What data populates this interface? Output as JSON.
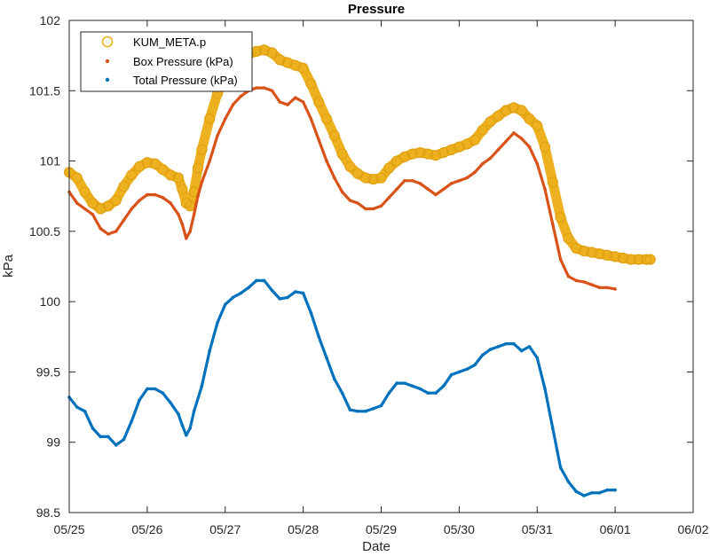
{
  "chart_data": {
    "type": "scatter",
    "title": "Pressure",
    "xlabel": "Date",
    "ylabel": "kPa",
    "x_ticks": [
      "05/25",
      "05/26",
      "05/27",
      "05/28",
      "05/29",
      "05/30",
      "05/31",
      "06/01",
      "06/02"
    ],
    "xlim_days": [
      0,
      8
    ],
    "ylim": [
      98.5,
      102
    ],
    "y_ticks": [
      "98.5",
      "99",
      "99.5",
      "100",
      "100.5",
      "101",
      "101.5",
      "102"
    ],
    "grid": false,
    "legend_position": "top-left",
    "series": [
      {
        "name": "KUM_META.p",
        "color": "#EDB120",
        "marker": "circle",
        "points": [
          [
            0.0,
            100.92
          ],
          [
            0.1,
            100.88
          ],
          [
            0.2,
            100.78
          ],
          [
            0.3,
            100.7
          ],
          [
            0.4,
            100.66
          ],
          [
            0.5,
            100.68
          ],
          [
            0.6,
            100.72
          ],
          [
            0.7,
            100.82
          ],
          [
            0.8,
            100.9
          ],
          [
            0.9,
            100.96
          ],
          [
            1.0,
            100.99
          ],
          [
            1.1,
            100.98
          ],
          [
            1.2,
            100.94
          ],
          [
            1.3,
            100.9
          ],
          [
            1.4,
            100.88
          ],
          [
            1.45,
            100.8
          ],
          [
            1.5,
            100.7
          ],
          [
            1.55,
            100.68
          ],
          [
            1.6,
            100.78
          ],
          [
            1.65,
            100.95
          ],
          [
            1.7,
            101.08
          ],
          [
            1.8,
            101.3
          ],
          [
            1.9,
            101.48
          ],
          [
            2.0,
            101.6
          ],
          [
            2.1,
            101.68
          ],
          [
            2.2,
            101.72
          ],
          [
            2.3,
            101.76
          ],
          [
            2.4,
            101.78
          ],
          [
            2.5,
            101.79
          ],
          [
            2.6,
            101.77
          ],
          [
            2.7,
            101.72
          ],
          [
            2.8,
            101.7
          ],
          [
            2.9,
            101.68
          ],
          [
            3.0,
            101.66
          ],
          [
            3.1,
            101.55
          ],
          [
            3.2,
            101.42
          ],
          [
            3.3,
            101.3
          ],
          [
            3.4,
            101.18
          ],
          [
            3.5,
            101.05
          ],
          [
            3.6,
            100.96
          ],
          [
            3.7,
            100.91
          ],
          [
            3.8,
            100.88
          ],
          [
            3.9,
            100.87
          ],
          [
            4.0,
            100.88
          ],
          [
            4.1,
            100.95
          ],
          [
            4.2,
            101.0
          ],
          [
            4.3,
            101.03
          ],
          [
            4.4,
            101.05
          ],
          [
            4.5,
            101.06
          ],
          [
            4.6,
            101.05
          ],
          [
            4.7,
            101.04
          ],
          [
            4.8,
            101.06
          ],
          [
            4.9,
            101.08
          ],
          [
            5.0,
            101.1
          ],
          [
            5.1,
            101.12
          ],
          [
            5.2,
            101.15
          ],
          [
            5.3,
            101.22
          ],
          [
            5.4,
            101.28
          ],
          [
            5.5,
            101.32
          ],
          [
            5.6,
            101.36
          ],
          [
            5.7,
            101.38
          ],
          [
            5.8,
            101.36
          ],
          [
            5.9,
            101.3
          ],
          [
            6.0,
            101.25
          ],
          [
            6.1,
            101.1
          ],
          [
            6.2,
            100.85
          ],
          [
            6.3,
            100.6
          ],
          [
            6.4,
            100.45
          ],
          [
            6.5,
            100.38
          ],
          [
            6.6,
            100.36
          ],
          [
            6.7,
            100.35
          ],
          [
            6.8,
            100.34
          ],
          [
            6.9,
            100.33
          ],
          [
            7.0,
            100.32
          ],
          [
            7.1,
            100.31
          ],
          [
            7.2,
            100.3
          ],
          [
            7.3,
            100.3
          ],
          [
            7.4,
            100.3
          ],
          [
            7.45,
            100.3
          ]
        ]
      },
      {
        "name": "Box Pressure (kPa)",
        "color": "#D95319",
        "marker": "dot",
        "points": [
          [
            0.0,
            100.78
          ],
          [
            0.1,
            100.7
          ],
          [
            0.2,
            100.66
          ],
          [
            0.3,
            100.62
          ],
          [
            0.4,
            100.52
          ],
          [
            0.5,
            100.48
          ],
          [
            0.6,
            100.5
          ],
          [
            0.7,
            100.58
          ],
          [
            0.8,
            100.66
          ],
          [
            0.9,
            100.72
          ],
          [
            1.0,
            100.76
          ],
          [
            1.1,
            100.76
          ],
          [
            1.2,
            100.74
          ],
          [
            1.3,
            100.7
          ],
          [
            1.4,
            100.62
          ],
          [
            1.45,
            100.55
          ],
          [
            1.5,
            100.45
          ],
          [
            1.55,
            100.5
          ],
          [
            1.6,
            100.62
          ],
          [
            1.65,
            100.75
          ],
          [
            1.7,
            100.85
          ],
          [
            1.8,
            101.0
          ],
          [
            1.9,
            101.18
          ],
          [
            2.0,
            101.3
          ],
          [
            2.1,
            101.4
          ],
          [
            2.2,
            101.46
          ],
          [
            2.3,
            101.5
          ],
          [
            2.4,
            101.52
          ],
          [
            2.5,
            101.52
          ],
          [
            2.6,
            101.5
          ],
          [
            2.7,
            101.42
          ],
          [
            2.8,
            101.4
          ],
          [
            2.9,
            101.45
          ],
          [
            3.0,
            101.42
          ],
          [
            3.1,
            101.3
          ],
          [
            3.2,
            101.15
          ],
          [
            3.3,
            101.0
          ],
          [
            3.4,
            100.88
          ],
          [
            3.5,
            100.78
          ],
          [
            3.6,
            100.72
          ],
          [
            3.7,
            100.7
          ],
          [
            3.8,
            100.66
          ],
          [
            3.9,
            100.66
          ],
          [
            4.0,
            100.68
          ],
          [
            4.1,
            100.74
          ],
          [
            4.2,
            100.8
          ],
          [
            4.3,
            100.86
          ],
          [
            4.4,
            100.86
          ],
          [
            4.5,
            100.84
          ],
          [
            4.6,
            100.8
          ],
          [
            4.7,
            100.76
          ],
          [
            4.8,
            100.8
          ],
          [
            4.9,
            100.84
          ],
          [
            5.0,
            100.86
          ],
          [
            5.1,
            100.88
          ],
          [
            5.2,
            100.92
          ],
          [
            5.3,
            100.98
          ],
          [
            5.4,
            101.02
          ],
          [
            5.5,
            101.08
          ],
          [
            5.6,
            101.14
          ],
          [
            5.7,
            101.2
          ],
          [
            5.8,
            101.16
          ],
          [
            5.9,
            101.1
          ],
          [
            6.0,
            100.98
          ],
          [
            6.1,
            100.8
          ],
          [
            6.2,
            100.55
          ],
          [
            6.3,
            100.3
          ],
          [
            6.4,
            100.18
          ],
          [
            6.5,
            100.15
          ],
          [
            6.6,
            100.14
          ],
          [
            6.7,
            100.12
          ],
          [
            6.8,
            100.1
          ],
          [
            6.9,
            100.1
          ],
          [
            7.0,
            100.09
          ]
        ]
      },
      {
        "name": "Total Pressure (kPa)",
        "color": "#0072BD",
        "marker": "dot",
        "points": [
          [
            0.0,
            99.32
          ],
          [
            0.1,
            99.25
          ],
          [
            0.2,
            99.22
          ],
          [
            0.3,
            99.1
          ],
          [
            0.4,
            99.04
          ],
          [
            0.5,
            99.04
          ],
          [
            0.6,
            98.98
          ],
          [
            0.7,
            99.02
          ],
          [
            0.8,
            99.15
          ],
          [
            0.9,
            99.3
          ],
          [
            1.0,
            99.38
          ],
          [
            1.1,
            99.38
          ],
          [
            1.2,
            99.35
          ],
          [
            1.3,
            99.28
          ],
          [
            1.4,
            99.2
          ],
          [
            1.45,
            99.12
          ],
          [
            1.5,
            99.05
          ],
          [
            1.55,
            99.1
          ],
          [
            1.6,
            99.22
          ],
          [
            1.7,
            99.4
          ],
          [
            1.8,
            99.65
          ],
          [
            1.9,
            99.85
          ],
          [
            2.0,
            99.98
          ],
          [
            2.1,
            100.03
          ],
          [
            2.2,
            100.06
          ],
          [
            2.3,
            100.1
          ],
          [
            2.4,
            100.15
          ],
          [
            2.5,
            100.15
          ],
          [
            2.6,
            100.08
          ],
          [
            2.7,
            100.02
          ],
          [
            2.8,
            100.03
          ],
          [
            2.9,
            100.07
          ],
          [
            3.0,
            100.06
          ],
          [
            3.1,
            99.92
          ],
          [
            3.2,
            99.75
          ],
          [
            3.3,
            99.6
          ],
          [
            3.4,
            99.45
          ],
          [
            3.5,
            99.35
          ],
          [
            3.6,
            99.23
          ],
          [
            3.7,
            99.22
          ],
          [
            3.8,
            99.22
          ],
          [
            3.9,
            99.24
          ],
          [
            4.0,
            99.26
          ],
          [
            4.1,
            99.35
          ],
          [
            4.2,
            99.42
          ],
          [
            4.3,
            99.42
          ],
          [
            4.4,
            99.4
          ],
          [
            4.5,
            99.38
          ],
          [
            4.6,
            99.35
          ],
          [
            4.7,
            99.35
          ],
          [
            4.8,
            99.4
          ],
          [
            4.9,
            99.48
          ],
          [
            5.0,
            99.5
          ],
          [
            5.1,
            99.52
          ],
          [
            5.2,
            99.55
          ],
          [
            5.3,
            99.62
          ],
          [
            5.4,
            99.66
          ],
          [
            5.5,
            99.68
          ],
          [
            5.6,
            99.7
          ],
          [
            5.7,
            99.7
          ],
          [
            5.8,
            99.65
          ],
          [
            5.9,
            99.68
          ],
          [
            6.0,
            99.6
          ],
          [
            6.1,
            99.38
          ],
          [
            6.2,
            99.1
          ],
          [
            6.3,
            98.82
          ],
          [
            6.4,
            98.72
          ],
          [
            6.5,
            98.65
          ],
          [
            6.6,
            98.62
          ],
          [
            6.7,
            98.64
          ],
          [
            6.8,
            98.64
          ],
          [
            6.9,
            98.66
          ],
          [
            7.0,
            98.66
          ]
        ]
      }
    ]
  }
}
